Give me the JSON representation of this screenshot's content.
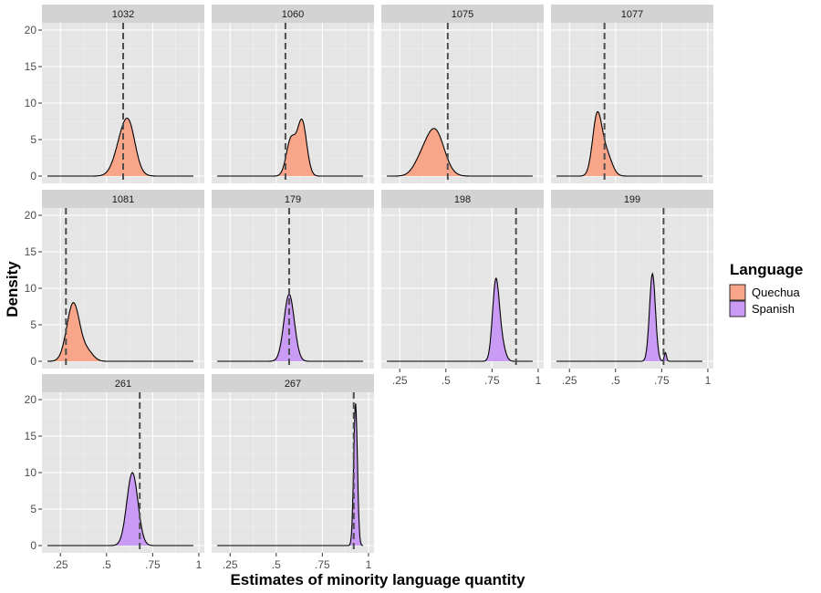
{
  "chart_data": {
    "type": "area",
    "facet_panels": [
      {
        "label": "1032",
        "language": "Quechua",
        "mean_line": 0.59,
        "peaks": [
          [
            0.6,
            0.045,
            6.5
          ],
          [
            0.63,
            0.03,
            2.0
          ]
        ]
      },
      {
        "label": "1060",
        "language": "Quechua",
        "mean_line": 0.55,
        "peaks": [
          [
            0.58,
            0.025,
            5.0
          ],
          [
            0.64,
            0.025,
            7.5
          ]
        ]
      },
      {
        "label": "1075",
        "language": "Quechua",
        "mean_line": 0.51,
        "peaks": [
          [
            0.44,
            0.05,
            6.3
          ],
          [
            0.36,
            0.04,
            1.5
          ]
        ]
      },
      {
        "label": "1077",
        "language": "Quechua",
        "mean_line": 0.44,
        "peaks": [
          [
            0.4,
            0.025,
            8.0
          ],
          [
            0.45,
            0.03,
            3.0
          ]
        ]
      },
      {
        "label": "1081",
        "language": "Quechua",
        "mean_line": 0.28,
        "peaks": [
          [
            0.32,
            0.035,
            8.0
          ],
          [
            0.4,
            0.03,
            1.2
          ]
        ]
      },
      {
        "label": "179",
        "language": "Spanish",
        "mean_line": 0.57,
        "peaks": [
          [
            0.57,
            0.028,
            9.2
          ]
        ]
      },
      {
        "label": "198",
        "language": "Spanish",
        "mean_line": 0.88,
        "peaks": [
          [
            0.77,
            0.018,
            10.5
          ],
          [
            0.8,
            0.02,
            2.5
          ]
        ]
      },
      {
        "label": "199",
        "language": "Spanish",
        "mean_line": 0.76,
        "peaks": [
          [
            0.7,
            0.016,
            12.0
          ],
          [
            0.77,
            0.006,
            1.2
          ]
        ]
      },
      {
        "label": "261",
        "language": "Spanish",
        "mean_line": 0.68,
        "peaks": [
          [
            0.64,
            0.03,
            10.0
          ]
        ]
      },
      {
        "label": "267",
        "language": "Spanish",
        "mean_line": 0.92,
        "peaks": [
          [
            0.93,
            0.01,
            19.5
          ]
        ]
      }
    ],
    "x_ticks": [
      {
        "value": 0.25,
        "label": ".25"
      },
      {
        "value": 0.5,
        "label": ".5"
      },
      {
        "value": 0.75,
        "label": ".75"
      },
      {
        "value": 1.0,
        "label": "1"
      }
    ],
    "y_ticks": [
      0,
      5,
      10,
      15,
      20
    ],
    "xlabel": "Estimates of minority language quantity",
    "ylabel": "Density",
    "legend": {
      "title": "Language",
      "entries": [
        {
          "name": "Quechua",
          "color": "#F8A58A"
        },
        {
          "name": "Spanish",
          "color": "#C99BF5"
        }
      ]
    },
    "panel_bg": "#E5E5E5",
    "strip_bg": "#D3D3D3",
    "grid": true
  }
}
